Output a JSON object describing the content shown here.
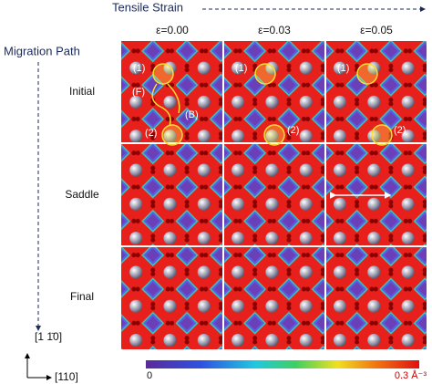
{
  "header": {
    "strain_axis": "Tensile Strain",
    "path_axis": "Migration Path"
  },
  "columns": [
    "ε=0.00",
    "ε=0.03",
    "ε=0.05"
  ],
  "rows": [
    "Initial",
    "Saddle",
    "Final"
  ],
  "directions": {
    "vertical": "[1 1̄0]",
    "horizontal": "[110]"
  },
  "colorbar": {
    "min_label": "0",
    "max_label": "0.3 Å⁻³"
  },
  "annotations": {
    "site1": "(1)",
    "site2": "(2)",
    "forward": "(F)",
    "backward": "(B)"
  }
}
